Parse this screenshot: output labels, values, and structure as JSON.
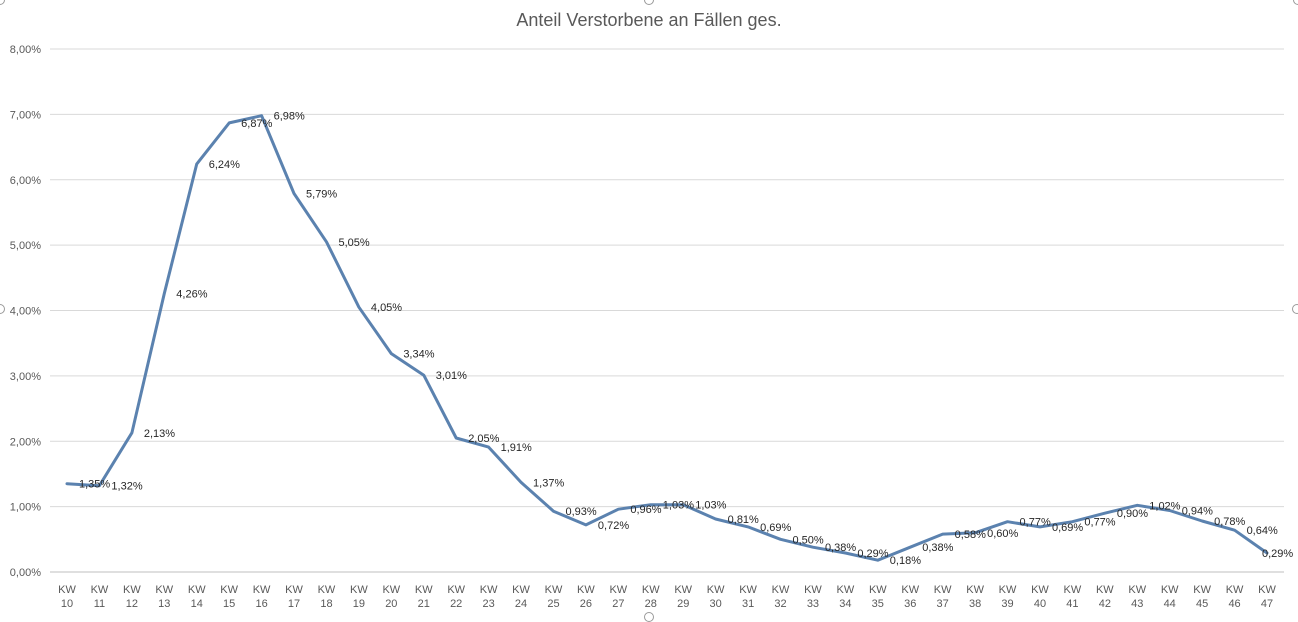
{
  "chart_data": {
    "type": "line",
    "title": "Anteil Verstorbene an Fällen ges.",
    "xlabel": "",
    "ylabel": "",
    "ylim": [
      0,
      8
    ],
    "y_ticks": [
      0,
      1,
      2,
      3,
      4,
      5,
      6,
      7,
      8
    ],
    "y_tick_labels": [
      "0,00%",
      "1,00%",
      "2,00%",
      "3,00%",
      "4,00%",
      "5,00%",
      "6,00%",
      "7,00%",
      "8,00%"
    ],
    "grid": true,
    "legend": "none",
    "series_color": "#5B82AF",
    "categories": [
      "KW 10",
      "KW 11",
      "KW 12",
      "KW 13",
      "KW 14",
      "KW 15",
      "KW 16",
      "KW 17",
      "KW 18",
      "KW 19",
      "KW 20",
      "KW 21",
      "KW 22",
      "KW 23",
      "KW 24",
      "KW 25",
      "KW 26",
      "KW 27",
      "KW 28",
      "KW 29",
      "KW 30",
      "KW 31",
      "KW 32",
      "KW 33",
      "KW 34",
      "KW 35",
      "KW 36",
      "KW 37",
      "KW 38",
      "KW 39",
      "KW 40",
      "KW 41",
      "KW 42",
      "KW 43",
      "KW 44",
      "KW 45",
      "KW 46",
      "KW 47"
    ],
    "series": [
      {
        "name": "Anteil Verstorbene an Fällen ges.",
        "values": [
          1.35,
          1.32,
          2.13,
          4.26,
          6.24,
          6.87,
          6.98,
          5.79,
          5.05,
          4.05,
          3.34,
          3.01,
          2.05,
          1.91,
          1.37,
          0.93,
          0.72,
          0.96,
          1.03,
          1.03,
          0.81,
          0.69,
          0.5,
          0.38,
          0.29,
          0.18,
          0.38,
          0.58,
          0.6,
          0.77,
          0.69,
          0.77,
          0.9,
          1.02,
          0.94,
          0.78,
          0.64,
          0.29
        ],
        "labels": [
          "1,35%",
          "1,32%",
          "2,13%",
          "4,26%",
          "6,24%",
          "6,87%",
          "6,98%",
          "5,79%",
          "5,05%",
          "4,05%",
          "3,34%",
          "3,01%",
          "2,05%",
          "1,91%",
          "1,37%",
          "0,93%",
          "0,72%",
          "0,96%",
          "1,03%",
          "1,03%",
          "0,81%",
          "0,69%",
          "0,50%",
          "0,38%",
          "0,29%",
          "0,18%",
          "0,38%",
          "0,58%",
          "0,60%",
          "0,77%",
          "0,69%",
          "0,77%",
          "0,90%",
          "1,02%",
          "0,94%",
          "0,78%",
          "0,64%",
          "0,29%"
        ]
      }
    ]
  }
}
